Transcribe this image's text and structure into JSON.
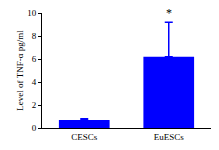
{
  "chart_data": {
    "type": "bar",
    "categories": [
      "CESCs",
      "EuESCs"
    ],
    "values": [
      0.7,
      6.2
    ],
    "errors": [
      0.1,
      3.0
    ],
    "color": "#0000ff",
    "y_label": "Level of TNF-α pg/ml",
    "ylim": [
      0,
      10
    ],
    "yticks": [
      0,
      2,
      4,
      6,
      8,
      10
    ],
    "grid": false,
    "annotations": [
      {
        "text": "*",
        "category": "EuESCs"
      }
    ]
  }
}
